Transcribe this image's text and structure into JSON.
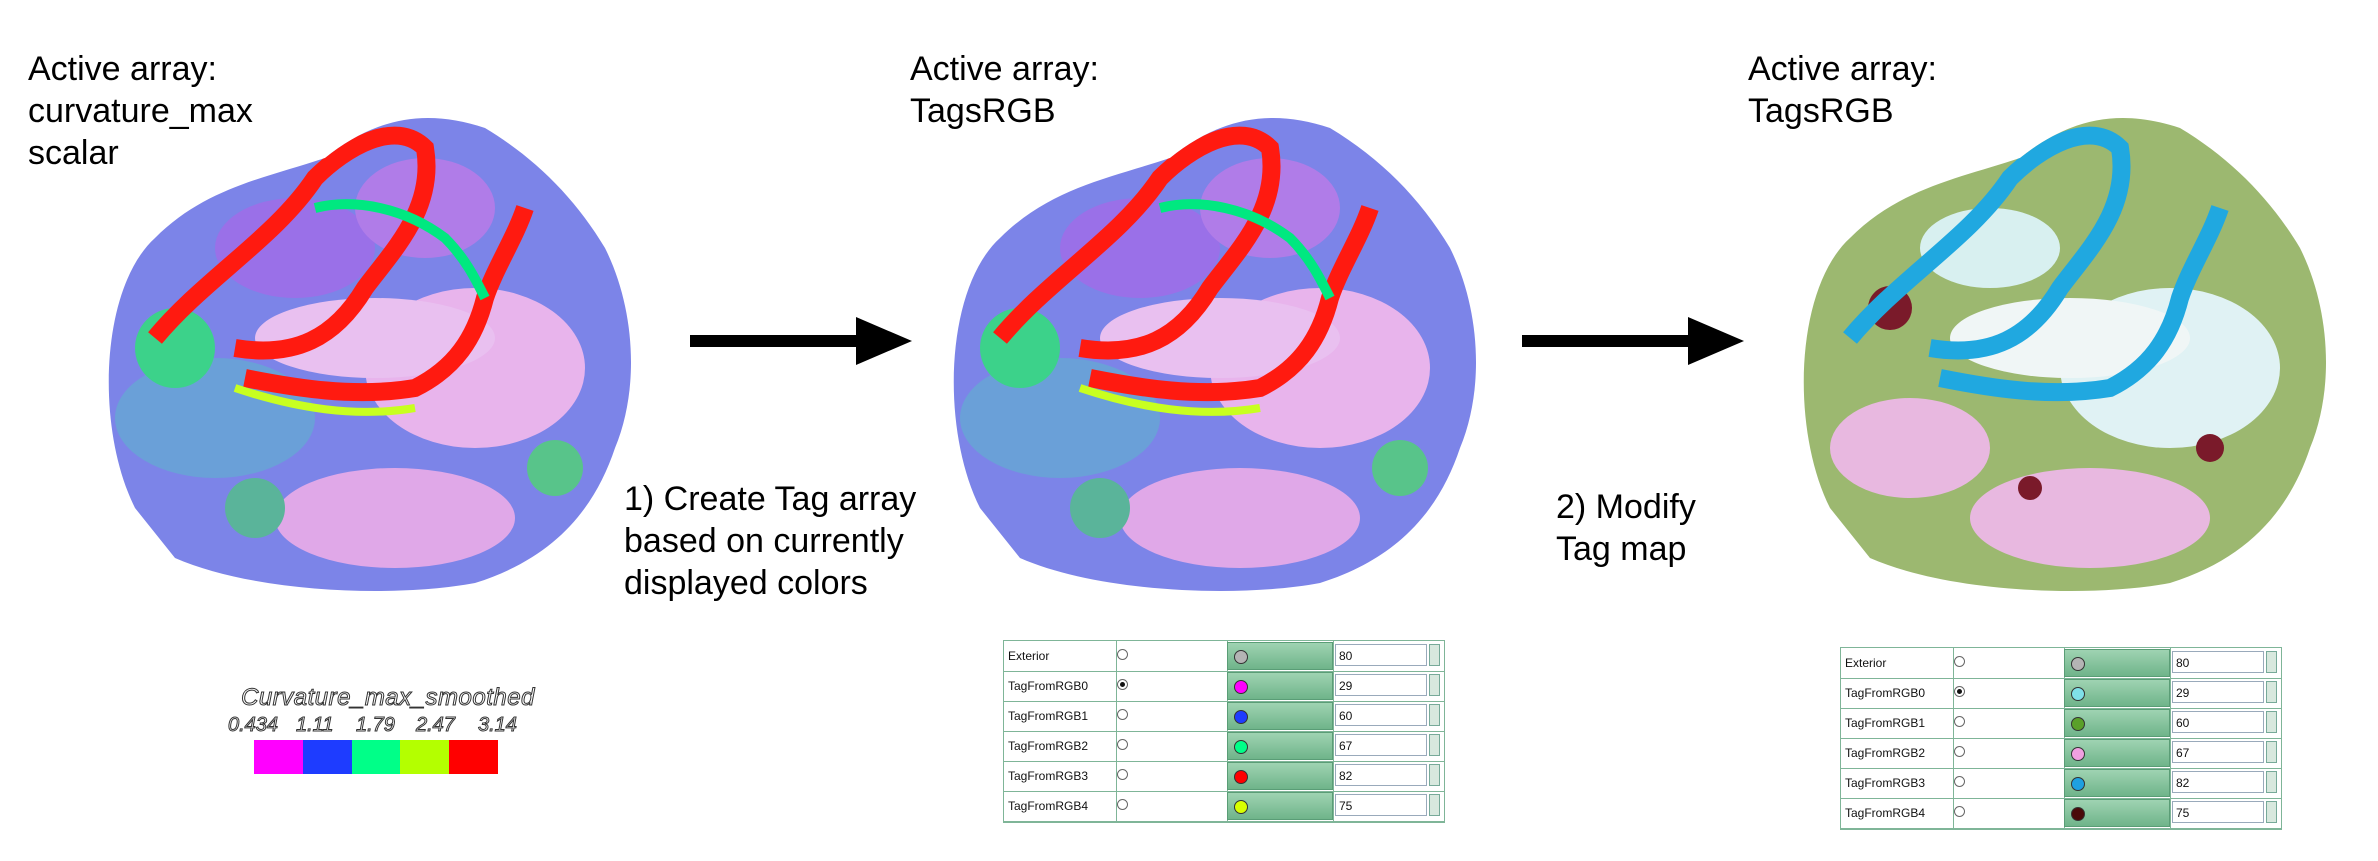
{
  "panels": [
    {
      "caption": "Active array:\ncurvature_max\nscalar"
    },
    {
      "caption": "Active array:\nTagsRGB"
    },
    {
      "caption": "Active array:\nTagsRGB"
    }
  ],
  "steps": [
    {
      "text": "1) Create Tag array\nbased on currently\n displayed colors"
    },
    {
      "text": "2) Modify\nTag map"
    }
  ],
  "legend": {
    "title": "Curvature_max_smoothed",
    "ticks": [
      "0.434",
      "1.11",
      "1.79",
      "2.47",
      "3.14"
    ],
    "colors": [
      "#ff00ff",
      "#1e3cff",
      "#00ff88",
      "#b4ff00",
      "#ff0000"
    ]
  },
  "tables": [
    {
      "rows": [
        {
          "name": "Exterior",
          "selected": false,
          "color": "#b4b4b4",
          "value": "80"
        },
        {
          "name": "TagFromRGB0",
          "selected": true,
          "color": "#ff00ff",
          "value": "29"
        },
        {
          "name": "TagFromRGB1",
          "selected": false,
          "color": "#1e3cff",
          "value": "60"
        },
        {
          "name": "TagFromRGB2",
          "selected": false,
          "color": "#00ff88",
          "value": "67"
        },
        {
          "name": "TagFromRGB3",
          "selected": false,
          "color": "#ff0000",
          "value": "82"
        },
        {
          "name": "TagFromRGB4",
          "selected": false,
          "color": "#d8ff00",
          "value": "75"
        }
      ]
    },
    {
      "rows": [
        {
          "name": "Exterior",
          "selected": false,
          "color": "#b4b4b4",
          "value": "80"
        },
        {
          "name": "TagFromRGB0",
          "selected": true,
          "color": "#7fe0e8",
          "value": "29"
        },
        {
          "name": "TagFromRGB1",
          "selected": false,
          "color": "#5aa02a",
          "value": "60"
        },
        {
          "name": "TagFromRGB2",
          "selected": false,
          "color": "#f0a0e0",
          "value": "67"
        },
        {
          "name": "TagFromRGB3",
          "selected": false,
          "color": "#1ea0e0",
          "value": "82"
        },
        {
          "name": "TagFromRGB4",
          "selected": false,
          "color": "#4a0a0a",
          "value": "75"
        }
      ]
    }
  ]
}
